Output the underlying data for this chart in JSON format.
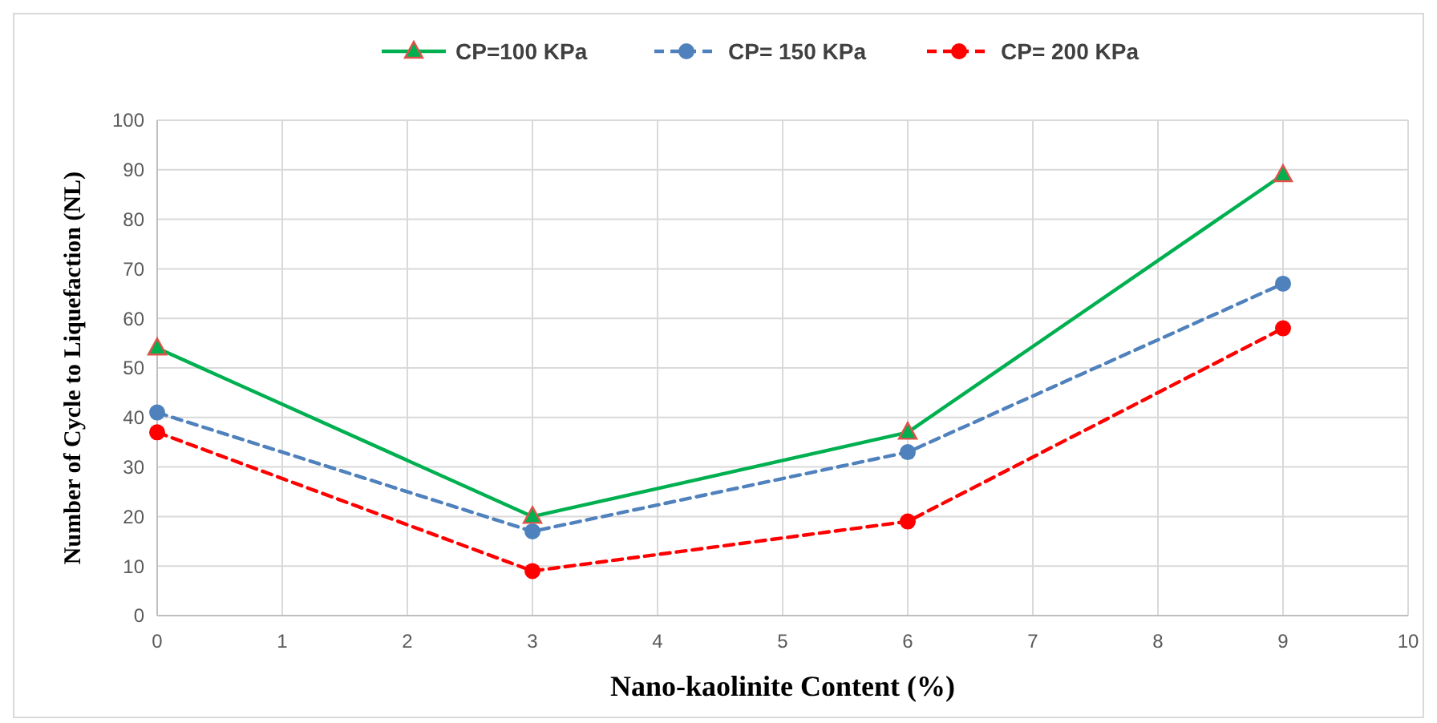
{
  "chart_data": {
    "type": "line",
    "xlabel": "Nano-kaolinite Content (%)",
    "ylabel": "Number of Cycle to Liquefaction (NL)",
    "x": [
      0,
      3,
      6,
      9
    ],
    "series": [
      {
        "name": "CP=100 KPa",
        "color": "#00b050",
        "values": [
          54,
          20,
          37,
          89
        ],
        "marker": "triangle",
        "line_style": "solid"
      },
      {
        "name": "CP= 150 KPa",
        "color": "#4f81bd",
        "values": [
          41,
          17,
          33,
          67
        ],
        "marker": "circle",
        "line_style": "dashed"
      },
      {
        "name": "CP= 200 KPa",
        "color": "#ff0000",
        "values": [
          37,
          9,
          19,
          58
        ],
        "marker": "circle",
        "line_style": "dashed"
      }
    ],
    "xlim": [
      0,
      10
    ],
    "xticks": [
      0,
      1,
      2,
      3,
      4,
      5,
      6,
      7,
      8,
      9,
      10
    ],
    "ylim": [
      0,
      100
    ],
    "yticks": [
      0,
      10,
      20,
      30,
      40,
      50,
      60,
      70,
      80,
      90,
      100
    ],
    "grid": true,
    "legend": "top"
  }
}
